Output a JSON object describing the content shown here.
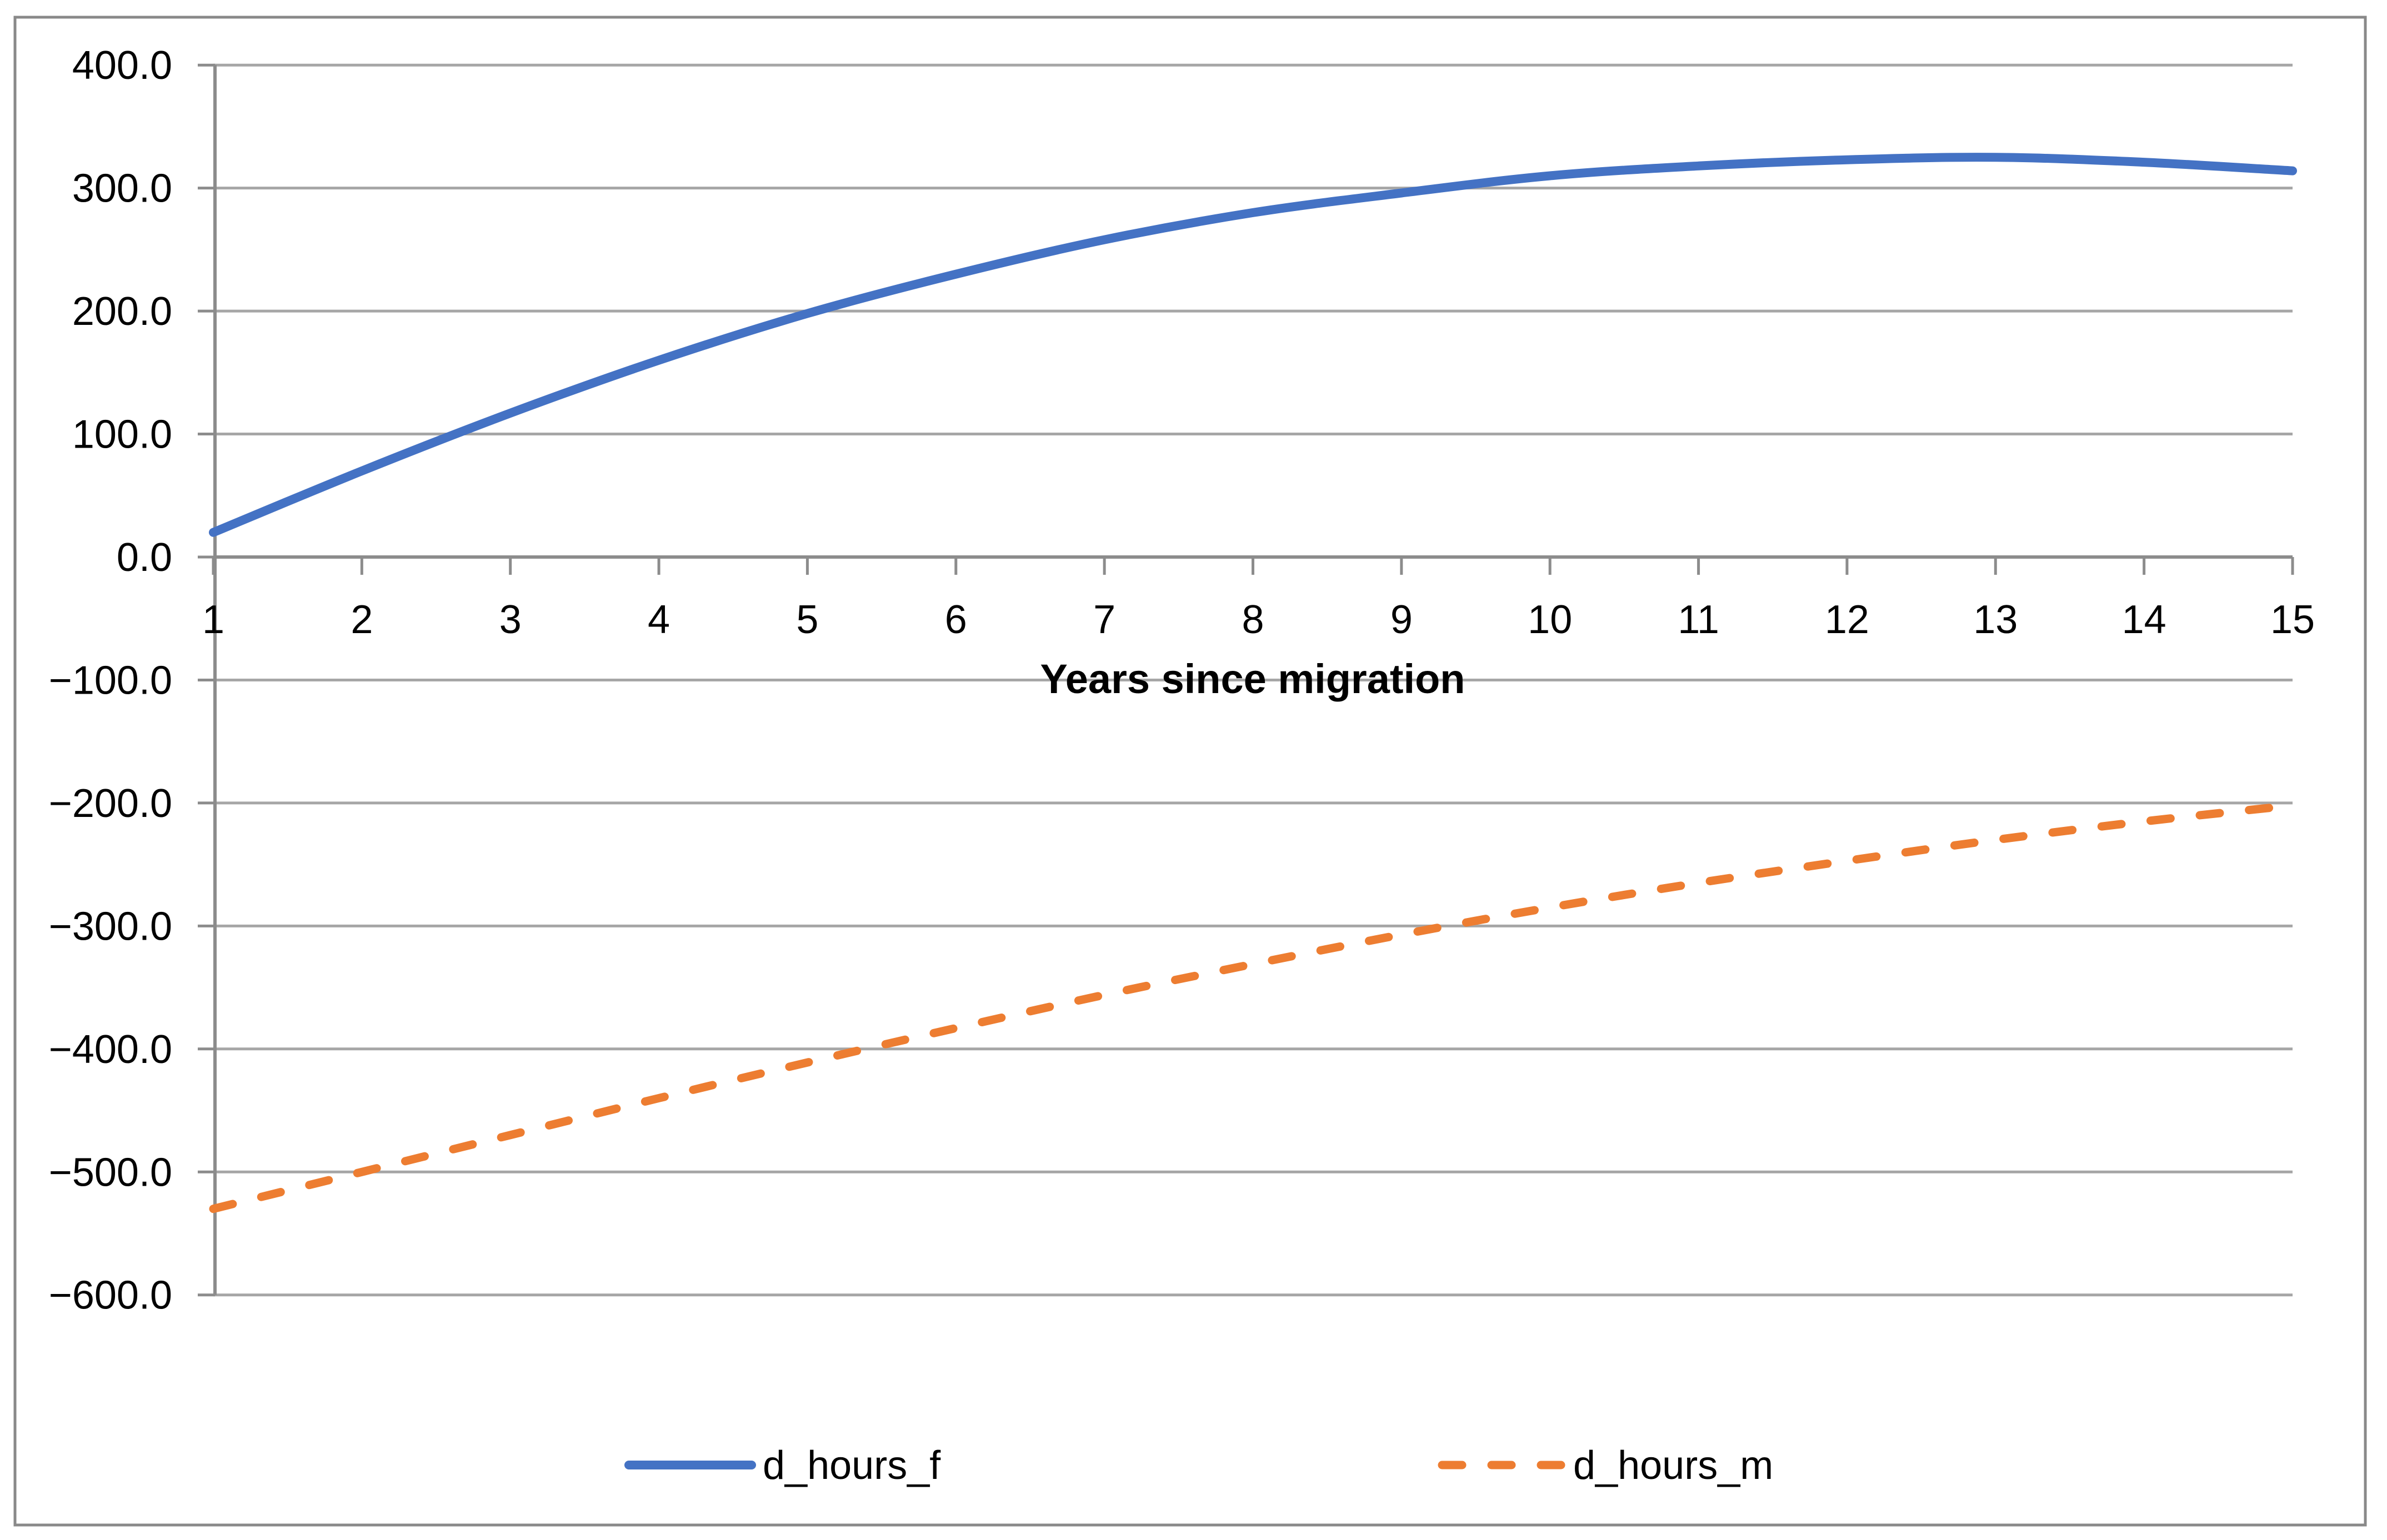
{
  "chart_data": {
    "type": "line",
    "title": "",
    "xlabel": "Years since migration",
    "ylabel": "",
    "x": [
      1,
      2,
      3,
      4,
      5,
      6,
      7,
      8,
      9,
      10,
      11,
      12,
      13,
      14,
      15
    ],
    "series": [
      {
        "name": "d_hours_f",
        "color": "#4472C4",
        "line_style": "solid",
        "values": [
          20,
          70,
          117,
          160,
          198,
          230,
          258,
          280,
          296,
          310,
          318,
          323,
          325,
          321,
          314
        ]
      },
      {
        "name": "d_hours_m",
        "color": "#ED7D31",
        "line_style": "dashed",
        "values": [
          -530,
          -500,
          -470,
          -440,
          -411,
          -383,
          -356,
          -331,
          -307,
          -285,
          -265,
          -247,
          -230,
          -215,
          -202
        ]
      }
    ],
    "xlim": [
      1,
      15
    ],
    "ylim": [
      -600,
      400
    ],
    "x_tick_labels": [
      "1",
      "2",
      "3",
      "4",
      "5",
      "6",
      "7",
      "8",
      "9",
      "10",
      "11",
      "12",
      "13",
      "14",
      "15"
    ],
    "y_tick_values": [
      400,
      300,
      200,
      100,
      0,
      -100,
      -200,
      -300,
      -400,
      -500,
      -600
    ],
    "y_tick_labels": [
      "400.0",
      "300.0",
      "200.0",
      "100.0",
      "0.0",
      "−100.0",
      "−200.0",
      "−300.0",
      "−400.0",
      "−500.0",
      "−600.0"
    ],
    "grid": true,
    "legend_position": "bottom"
  },
  "styles": {
    "background": "#FFFFFF",
    "grid_color": "#A6A6A6",
    "axis_color": "#8C8C8C",
    "border_color": "#898989",
    "text_color": "#000000"
  }
}
